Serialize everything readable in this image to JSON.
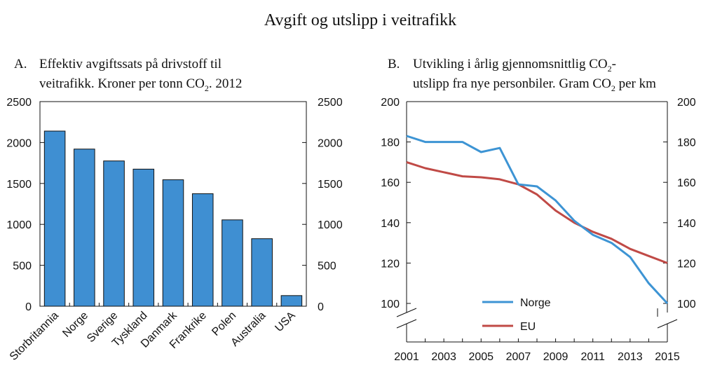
{
  "figure_title": "Avgift og utslipp i veitrafikk",
  "colors": {
    "bar": "#3f8fd2",
    "bar_stroke": "#111111",
    "norge": "#3d94d4",
    "eu": "#c04a46"
  },
  "panel_a": {
    "letter": "A.",
    "title_line1": "Effektiv avgiftssats på drivstoff til",
    "title_line2_pre": "veitrafikk. Kroner per tonn CO",
    "title_line2_sub": "2",
    "title_line2_post": ". 2012"
  },
  "panel_b": {
    "letter": "B.",
    "title_line1_pre": "Utvikling i årlig gjennomsnittlig CO",
    "title_line1_sub": "2",
    "title_line1_post": "-",
    "title_line2_pre": "utslipp fra nye personbiler. Gram CO",
    "title_line2_sub": "2",
    "title_line2_post": " per km"
  },
  "chart_data": [
    {
      "type": "bar",
      "categories": [
        "Storbritannia",
        "Norge",
        "Sverige",
        "Tyskland",
        "Danmark",
        "Frankrike",
        "Polen",
        "Australia",
        "USA"
      ],
      "values": [
        2140,
        1920,
        1775,
        1675,
        1545,
        1375,
        1055,
        825,
        130
      ],
      "ylim": [
        0,
        2500
      ],
      "yticks": [
        0,
        500,
        1000,
        1500,
        2000,
        2500
      ],
      "grid": false
    },
    {
      "type": "line",
      "x": [
        2001,
        2002,
        2003,
        2004,
        2005,
        2006,
        2007,
        2008,
        2009,
        2010,
        2011,
        2012,
        2013,
        2014,
        2015
      ],
      "xticks": [
        2001,
        2003,
        2005,
        2007,
        2009,
        2011,
        2013,
        2015
      ],
      "ylim": [
        100,
        200
      ],
      "yticks": [
        100,
        120,
        140,
        160,
        180,
        200
      ],
      "axis_break": true,
      "grid": false,
      "legend_placement": "bottom-center",
      "series": [
        {
          "name": "Norge",
          "color_key": "norge",
          "values": [
            183,
            180,
            180,
            180,
            175,
            177,
            159,
            158,
            151,
            141,
            134,
            130,
            123,
            110,
            100
          ]
        },
        {
          "name": "EU",
          "color_key": "eu",
          "values": [
            170,
            167,
            165,
            163,
            162.5,
            161.5,
            159,
            154,
            146,
            140,
            135.5,
            132,
            127,
            123.5,
            120
          ]
        }
      ]
    }
  ]
}
